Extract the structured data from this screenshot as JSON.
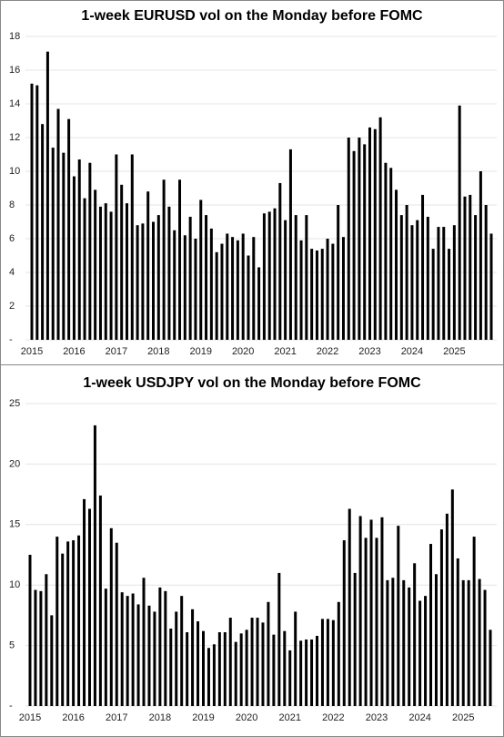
{
  "chart_data": [
    {
      "type": "bar",
      "title": "1-week EURUSD vol on the Monday before FOMC",
      "color": "#000000",
      "grid": true,
      "categories": [
        "2015",
        null,
        null,
        null,
        null,
        null,
        null,
        null,
        "2016",
        null,
        null,
        null,
        null,
        null,
        null,
        null,
        "2017",
        null,
        null,
        null,
        null,
        null,
        null,
        null,
        "2018",
        null,
        null,
        null,
        null,
        null,
        null,
        null,
        "2019",
        null,
        null,
        null,
        null,
        null,
        null,
        null,
        "2020",
        null,
        null,
        null,
        null,
        null,
        null,
        null,
        "2021",
        null,
        null,
        null,
        null,
        null,
        null,
        null,
        "2022",
        null,
        null,
        null,
        null,
        null,
        null,
        null,
        "2023",
        null,
        null,
        null,
        null,
        null,
        null,
        null,
        "2024",
        null,
        null,
        null,
        null,
        null,
        null,
        null,
        "2025",
        null,
        null,
        null,
        null,
        null,
        null,
        null
      ],
      "values": [
        15.2,
        15.1,
        12.8,
        17.1,
        11.4,
        13.7,
        11.1,
        13.1,
        9.7,
        10.7,
        8.4,
        10.5,
        8.9,
        7.9,
        8.1,
        7.6,
        11.0,
        9.2,
        8.1,
        11.0,
        6.8,
        6.9,
        8.8,
        7.0,
        7.4,
        9.5,
        7.9,
        6.5,
        9.5,
        6.2,
        7.3,
        6.0,
        8.3,
        7.4,
        6.6,
        5.2,
        5.7,
        6.3,
        6.1,
        5.9,
        6.3,
        5.0,
        6.1,
        4.3,
        7.5,
        7.6,
        7.8,
        9.3,
        7.1,
        11.3,
        7.4,
        5.9,
        7.4,
        5.4,
        5.3,
        5.4,
        6.0,
        5.7,
        8.0,
        6.1,
        12.0,
        11.2,
        12.0,
        11.6,
        12.6,
        12.5,
        13.2,
        10.5,
        10.2,
        8.9,
        7.4,
        8.0,
        6.8,
        7.1,
        8.6,
        7.3,
        5.4,
        6.7,
        6.7,
        5.4,
        6.8,
        13.9,
        8.5,
        8.6,
        7.4,
        10.0,
        8.0,
        6.3
      ],
      "ylim": [
        0,
        18
      ],
      "yticks": [
        {
          "value": 0,
          "label": "-"
        },
        2,
        4,
        6,
        8,
        10,
        12,
        14,
        16,
        18
      ]
    },
    {
      "type": "bar",
      "title": "1-week USDJPY vol on the Monday before FOMC",
      "color": "#000000",
      "grid": true,
      "categories": [
        "2015",
        null,
        null,
        null,
        null,
        null,
        null,
        null,
        "2016",
        null,
        null,
        null,
        null,
        null,
        null,
        null,
        "2017",
        null,
        null,
        null,
        null,
        null,
        null,
        null,
        "2018",
        null,
        null,
        null,
        null,
        null,
        null,
        null,
        "2019",
        null,
        null,
        null,
        null,
        null,
        null,
        null,
        "2020",
        null,
        null,
        null,
        null,
        null,
        null,
        null,
        "2021",
        null,
        null,
        null,
        null,
        null,
        null,
        null,
        "2022",
        null,
        null,
        null,
        null,
        null,
        null,
        null,
        "2023",
        null,
        null,
        null,
        null,
        null,
        null,
        null,
        "2024",
        null,
        null,
        null,
        null,
        null,
        null,
        null,
        "2025",
        null,
        null,
        null,
        null,
        null
      ],
      "values": [
        12.5,
        9.6,
        9.5,
        10.9,
        7.5,
        14.0,
        12.6,
        13.6,
        13.7,
        14.1,
        17.1,
        16.3,
        23.2,
        17.4,
        9.7,
        14.7,
        13.5,
        9.4,
        9.1,
        9.3,
        8.4,
        10.6,
        8.3,
        7.8,
        9.8,
        9.5,
        6.4,
        7.8,
        9.1,
        6.1,
        8.0,
        7.0,
        6.2,
        4.8,
        5.1,
        6.1,
        6.1,
        7.3,
        5.3,
        6.0,
        6.3,
        7.3,
        7.3,
        6.9,
        8.6,
        5.9,
        11.0,
        6.2,
        4.6,
        7.8,
        5.4,
        5.5,
        5.5,
        5.8,
        7.2,
        7.2,
        7.1,
        8.6,
        13.7,
        16.3,
        11.0,
        15.7,
        13.9,
        15.4,
        13.9,
        15.6,
        10.4,
        10.6,
        14.9,
        10.4,
        9.8,
        11.8,
        8.7,
        9.1,
        13.4,
        10.9,
        14.6,
        15.9,
        17.9,
        12.2,
        10.4,
        10.4,
        14.0,
        10.5,
        9.6,
        6.3
      ],
      "ylim": [
        0,
        25
      ],
      "yticks": [
        {
          "value": 0,
          "label": "-"
        },
        5,
        10,
        15,
        20,
        25
      ]
    }
  ]
}
